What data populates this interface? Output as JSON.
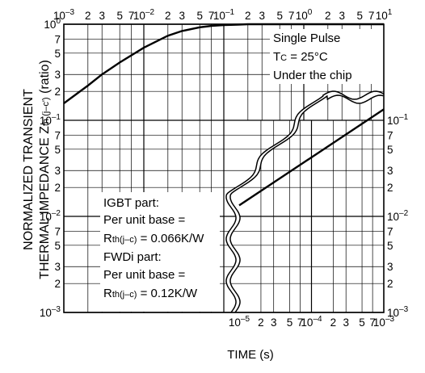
{
  "chart_data": {
    "type": "line",
    "scale": "log-log",
    "grid": true,
    "ylim": [
      0.001,
      1
    ],
    "xlim_top": [
      0.001,
      10
    ],
    "xlim_bottom": [
      1e-05,
      0.001
    ],
    "xlabel": "TIME (s)",
    "ylabel_line1": "NORMALIZED TRANSIENT",
    "ylabel_line2_main": "THERMAL IMPEDANCE",
    "ylabel_line2_sym": "Z",
    "ylabel_line2_sub": "th (j–c')",
    "ylabel_line2_unit": "(ratio)",
    "y_ticks_left": [
      {
        "v": 1,
        "m": "10",
        "e": "0"
      },
      {
        "v": 0.7,
        "m": "7"
      },
      {
        "v": 0.5,
        "m": "5"
      },
      {
        "v": 0.3,
        "m": "3"
      },
      {
        "v": 0.2,
        "m": "2"
      },
      {
        "v": 0.1,
        "m": "10",
        "e": "–1"
      },
      {
        "v": 0.07,
        "m": "7"
      },
      {
        "v": 0.05,
        "m": "5"
      },
      {
        "v": 0.03,
        "m": "3"
      },
      {
        "v": 0.02,
        "m": "2"
      },
      {
        "v": 0.01,
        "m": "10",
        "e": "–2"
      },
      {
        "v": 0.007,
        "m": "7"
      },
      {
        "v": 0.005,
        "m": "5"
      },
      {
        "v": 0.003,
        "m": "3"
      },
      {
        "v": 0.002,
        "m": "2"
      },
      {
        "v": 0.001,
        "m": "10",
        "e": "–3"
      }
    ],
    "y_ticks_right": [
      {
        "v": 0.1,
        "m": "10",
        "e": "–1"
      },
      {
        "v": 0.07,
        "m": "7"
      },
      {
        "v": 0.05,
        "m": "5"
      },
      {
        "v": 0.03,
        "m": "3"
      },
      {
        "v": 0.02,
        "m": "2"
      },
      {
        "v": 0.01,
        "m": "10",
        "e": "–2"
      },
      {
        "v": 0.007,
        "m": "7"
      },
      {
        "v": 0.005,
        "m": "5"
      },
      {
        "v": 0.003,
        "m": "3"
      },
      {
        "v": 0.002,
        "m": "2"
      },
      {
        "v": 0.001,
        "m": "10",
        "e": "–3"
      }
    ],
    "x_ticks_top": [
      {
        "v": 0.001,
        "m": "10",
        "e": "–3"
      },
      {
        "v": 0.002,
        "m": "2"
      },
      {
        "v": 0.003,
        "m": "3"
      },
      {
        "v": 0.005,
        "m": "5"
      },
      {
        "v": 0.007,
        "m": "7"
      },
      {
        "v": 0.01,
        "m": "10",
        "e": "–2"
      },
      {
        "v": 0.02,
        "m": "2"
      },
      {
        "v": 0.03,
        "m": "3"
      },
      {
        "v": 0.05,
        "m": "5"
      },
      {
        "v": 0.07,
        "m": "7"
      },
      {
        "v": 0.1,
        "m": "10",
        "e": "–1"
      },
      {
        "v": 0.2,
        "m": "2"
      },
      {
        "v": 0.3,
        "m": "3"
      },
      {
        "v": 0.5,
        "m": "5"
      },
      {
        "v": 0.7,
        "m": "7"
      },
      {
        "v": 1,
        "m": "10",
        "e": "0"
      },
      {
        "v": 2,
        "m": "2"
      },
      {
        "v": 3,
        "m": "3"
      },
      {
        "v": 5,
        "m": "5"
      },
      {
        "v": 7,
        "m": "7"
      },
      {
        "v": 10,
        "m": "10",
        "e": "1"
      }
    ],
    "x_ticks_bottom": [
      {
        "v": 1e-05,
        "m": "10",
        "e": "–5"
      },
      {
        "v": 2e-05,
        "m": "2"
      },
      {
        "v": 3e-05,
        "m": "3"
      },
      {
        "v": 5e-05,
        "m": "5"
      },
      {
        "v": 7e-05,
        "m": "7"
      },
      {
        "v": 0.0001,
        "m": "10",
        "e": "–4"
      },
      {
        "v": 0.0002,
        "m": "2"
      },
      {
        "v": 0.0003,
        "m": "3"
      },
      {
        "v": 0.0005,
        "m": "5"
      },
      {
        "v": 0.0007,
        "m": "7"
      },
      {
        "v": 0.001,
        "m": "10",
        "e": "–3"
      }
    ],
    "series": [
      {
        "axis": "top",
        "x": [
          0.001,
          0.002,
          0.003,
          0.005,
          0.01,
          0.02,
          0.03,
          0.05,
          0.07,
          0.1,
          0.15,
          0.2,
          0.5,
          1,
          10
        ],
        "y": [
          0.15,
          0.23,
          0.3,
          0.4,
          0.57,
          0.76,
          0.85,
          0.93,
          0.96,
          0.98,
          0.99,
          1.0,
          1.0,
          1.0,
          1.0
        ]
      },
      {
        "axis": "bottom",
        "x": [
          1e-05,
          0.001
        ],
        "y": [
          0.013,
          0.13
        ]
      }
    ],
    "annotations_top": [
      "Single Pulse",
      "Under the chip"
    ],
    "tc_sym": "T",
    "tc_sub": "C",
    "tc_rest": " = 25°C",
    "igbt_title": "IGBT part:",
    "igbt_base": "Per unit base =",
    "igbt_r_sym": "R",
    "igbt_r_sub": "th(j–c)",
    "igbt_r_val": " = 0.066K/W",
    "fwdi_title": "FWDi part:",
    "fwdi_base": "Per unit base =",
    "fwdi_r_sym": "R",
    "fwdi_r_sub": "th(j–c)",
    "fwdi_r_val": " = 0.12K/W"
  }
}
